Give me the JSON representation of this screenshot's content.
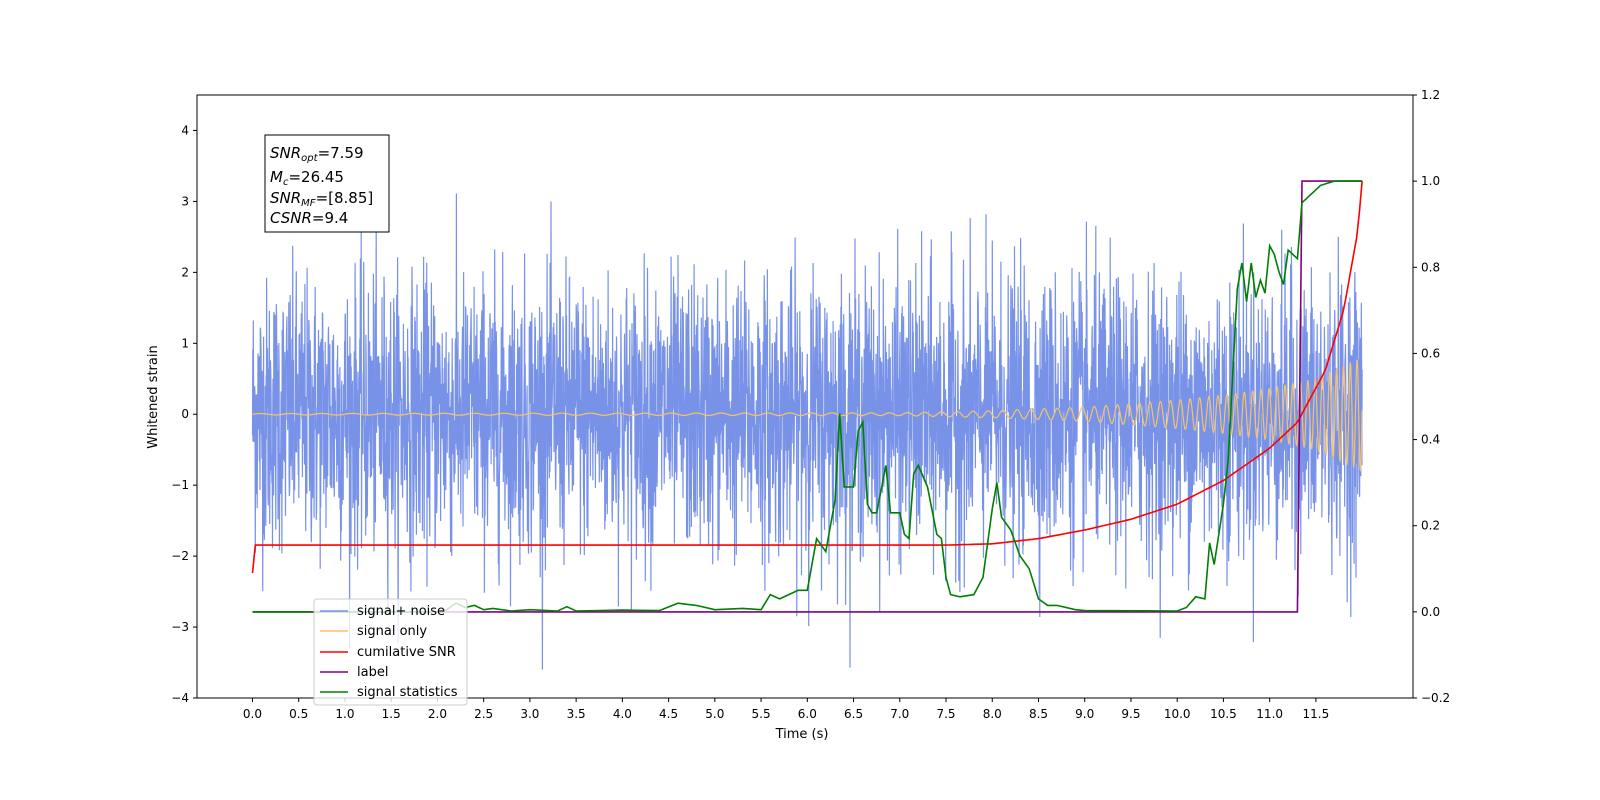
{
  "chart_data": {
    "type": "line",
    "xlabel": "Time (s)",
    "ylabel": "Whitened strain",
    "xlim": [
      -0.6,
      12.55
    ],
    "ylim_left": [
      -4,
      4.5
    ],
    "ylim_right": [
      -0.2,
      1.2
    ],
    "xticks": [
      "0.0",
      "0.5",
      "1.0",
      "1.5",
      "2.0",
      "2.5",
      "3.0",
      "3.5",
      "4.0",
      "4.5",
      "5.0",
      "5.5",
      "6.0",
      "6.5",
      "7.0",
      "7.5",
      "8.0",
      "8.5",
      "9.0",
      "9.5",
      "10.0",
      "10.5",
      "11.0",
      "11.5"
    ],
    "yticks_left": [
      "−4",
      "−3",
      "−2",
      "−1",
      "0",
      "1",
      "2",
      "3",
      "4"
    ],
    "yticks_right": [
      "−0.2",
      "0.0",
      "0.2",
      "0.4",
      "0.6",
      "0.8",
      "1.0",
      "1.2"
    ],
    "grid": false,
    "legend_position": "lower-left",
    "info_box": {
      "snr_opt": {
        "sym": "SNR",
        "sub": "opt",
        "val": "=7.59"
      },
      "mc": {
        "sym": "M",
        "sub": "c",
        "val": "=26.45"
      },
      "snr_mf": {
        "sym": "SNR",
        "sub": "MF",
        "val": "=[8.85]"
      },
      "csnr": {
        "sym": "CSNR",
        "val": "=9.4"
      }
    },
    "series": [
      {
        "name": "signal+ noise",
        "color": "#7892e8",
        "axis": "left",
        "description": "white noise around 0 with std ~1, t from 0 to 12",
        "noise_std": 0.95,
        "t_range": [
          0,
          12
        ]
      },
      {
        "name": "signal only",
        "color": "#f5c26b",
        "axis": "left",
        "description": "chirp with growing amplitude",
        "amplitude_points": [
          [
            0,
            0.01
          ],
          [
            7.0,
            0.02
          ],
          [
            8.0,
            0.05
          ],
          [
            9.0,
            0.1
          ],
          [
            10.0,
            0.2
          ],
          [
            10.5,
            0.27
          ],
          [
            11.0,
            0.36
          ],
          [
            11.5,
            0.5
          ],
          [
            12.0,
            0.8
          ]
        ]
      },
      {
        "name": "cumilative SNR",
        "color": "#ff0000",
        "axis": "right",
        "points": [
          [
            0,
            0.09
          ],
          [
            0.02,
            0.155
          ],
          [
            7.5,
            0.155
          ],
          [
            8.0,
            0.158
          ],
          [
            8.5,
            0.17
          ],
          [
            9.0,
            0.19
          ],
          [
            9.5,
            0.215
          ],
          [
            10.0,
            0.25
          ],
          [
            10.5,
            0.305
          ],
          [
            11.0,
            0.38
          ],
          [
            11.3,
            0.44
          ],
          [
            11.6,
            0.56
          ],
          [
            11.8,
            0.7
          ],
          [
            11.95,
            0.88
          ],
          [
            12.0,
            1.0
          ]
        ]
      },
      {
        "name": "label",
        "color": "#800080",
        "axis": "right",
        "points": [
          [
            0,
            0
          ],
          [
            11.3,
            0
          ],
          [
            11.35,
            1.0
          ],
          [
            12.0,
            1.0
          ]
        ]
      },
      {
        "name": "signal statistics",
        "color": "#007f00",
        "axis": "right",
        "points": [
          [
            0,
            0
          ],
          [
            2.0,
            0
          ],
          [
            2.1,
            0.005
          ],
          [
            2.2,
            0.02
          ],
          [
            2.3,
            0.01
          ],
          [
            2.4,
            0.015
          ],
          [
            2.5,
            0.005
          ],
          [
            2.6,
            0.008
          ],
          [
            2.8,
            0.002
          ],
          [
            3.0,
            0.005
          ],
          [
            3.3,
            0.002
          ],
          [
            3.4,
            0.012
          ],
          [
            3.5,
            0.002
          ],
          [
            4.0,
            0.004
          ],
          [
            4.4,
            0.003
          ],
          [
            4.6,
            0.02
          ],
          [
            4.8,
            0.015
          ],
          [
            5.0,
            0.005
          ],
          [
            5.3,
            0.008
          ],
          [
            5.5,
            0.005
          ],
          [
            5.6,
            0.04
          ],
          [
            5.7,
            0.03
          ],
          [
            5.8,
            0.04
          ],
          [
            5.9,
            0.05
          ],
          [
            6.0,
            0.05
          ],
          [
            6.1,
            0.17
          ],
          [
            6.2,
            0.14
          ],
          [
            6.3,
            0.26
          ],
          [
            6.35,
            0.46
          ],
          [
            6.4,
            0.29
          ],
          [
            6.5,
            0.29
          ],
          [
            6.55,
            0.42
          ],
          [
            6.6,
            0.44
          ],
          [
            6.65,
            0.25
          ],
          [
            6.7,
            0.23
          ],
          [
            6.75,
            0.23
          ],
          [
            6.85,
            0.34
          ],
          [
            6.9,
            0.23
          ],
          [
            6.95,
            0.23
          ],
          [
            7.0,
            0.23
          ],
          [
            7.05,
            0.18
          ],
          [
            7.1,
            0.17
          ],
          [
            7.15,
            0.32
          ],
          [
            7.2,
            0.34
          ],
          [
            7.3,
            0.29
          ],
          [
            7.4,
            0.18
          ],
          [
            7.45,
            0.17
          ],
          [
            7.5,
            0.08
          ],
          [
            7.55,
            0.04
          ],
          [
            7.65,
            0.035
          ],
          [
            7.8,
            0.04
          ],
          [
            7.9,
            0.08
          ],
          [
            8.0,
            0.24
          ],
          [
            8.05,
            0.3
          ],
          [
            8.1,
            0.22
          ],
          [
            8.2,
            0.19
          ],
          [
            8.3,
            0.13
          ],
          [
            8.4,
            0.1
          ],
          [
            8.5,
            0.03
          ],
          [
            8.6,
            0.015
          ],
          [
            8.7,
            0.015
          ],
          [
            8.9,
            0.005
          ],
          [
            9.0,
            0.003
          ],
          [
            10.0,
            0.002
          ],
          [
            10.1,
            0.01
          ],
          [
            10.2,
            0.035
          ],
          [
            10.3,
            0.03
          ],
          [
            10.35,
            0.16
          ],
          [
            10.4,
            0.11
          ],
          [
            10.5,
            0.25
          ],
          [
            10.55,
            0.35
          ],
          [
            10.65,
            0.75
          ],
          [
            10.7,
            0.81
          ],
          [
            10.75,
            0.72
          ],
          [
            10.8,
            0.81
          ],
          [
            10.85,
            0.73
          ],
          [
            10.9,
            0.77
          ],
          [
            10.95,
            0.74
          ],
          [
            11.0,
            0.85
          ],
          [
            11.05,
            0.83
          ],
          [
            11.1,
            0.79
          ],
          [
            11.15,
            0.76
          ],
          [
            11.2,
            0.84
          ],
          [
            11.3,
            0.82
          ],
          [
            11.35,
            0.95
          ],
          [
            11.45,
            0.97
          ],
          [
            11.55,
            0.99
          ],
          [
            11.7,
            1.0
          ],
          [
            12.0,
            1.0
          ]
        ]
      }
    ]
  }
}
